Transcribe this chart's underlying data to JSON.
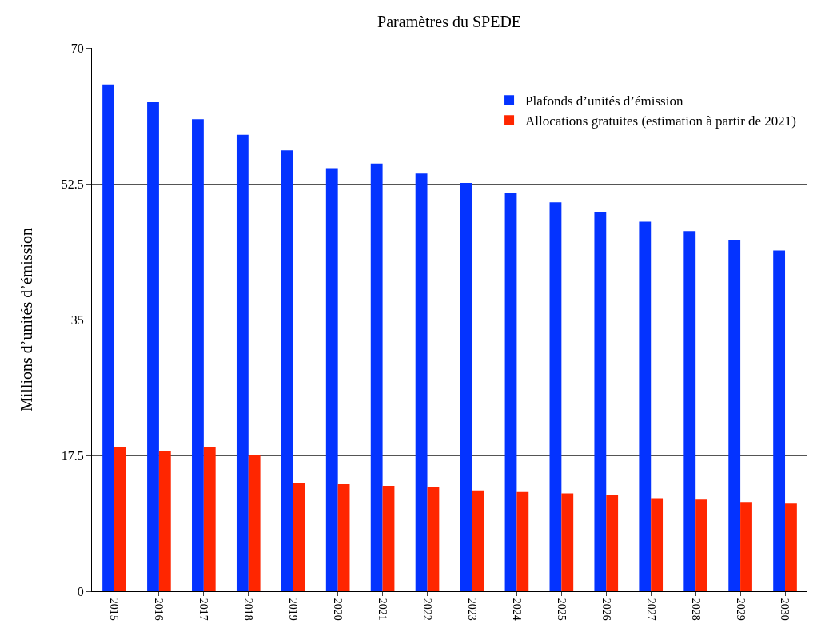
{
  "chart_data": {
    "type": "bar",
    "title": "Paramètres du SPEDE",
    "ylabel": "Millions d’unités d’émission",
    "categories": [
      "2015",
      "2016",
      "2017",
      "2018",
      "2019",
      "2020",
      "2021",
      "2022",
      "2023",
      "2024",
      "2025",
      "2026",
      "2027",
      "2028",
      "2029",
      "2030"
    ],
    "series": [
      {
        "name": "Plafonds d’unités d’émission",
        "color": "#0433ff",
        "values": [
          65.3,
          63.0,
          60.8,
          58.8,
          56.8,
          54.5,
          55.1,
          53.8,
          52.6,
          51.3,
          50.1,
          48.9,
          47.6,
          46.4,
          45.2,
          43.9
        ]
      },
      {
        "name": "Allocations gratuites (estimation à partir de 2021)",
        "color": "#ff2600",
        "values": [
          18.6,
          18.1,
          18.6,
          17.5,
          14.0,
          13.8,
          13.6,
          13.4,
          13.0,
          12.8,
          12.6,
          12.4,
          12.0,
          11.8,
          11.5,
          11.3
        ]
      }
    ],
    "ylim": [
      0,
      70
    ],
    "yticks": [
      0,
      17.5,
      35,
      52.5,
      70
    ],
    "grid": "y",
    "legend": "top right"
  }
}
